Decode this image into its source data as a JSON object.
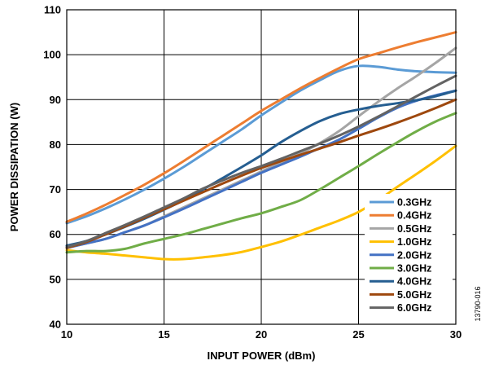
{
  "chart_data": {
    "type": "line",
    "title": "",
    "xlabel": "INPUT POWER (dBm)",
    "ylabel": "POWER DISSIPATION (W)",
    "xlim": [
      10,
      30
    ],
    "ylim": [
      40,
      110
    ],
    "xticks": [
      10,
      15,
      20,
      25,
      30
    ],
    "yticks": [
      40,
      50,
      60,
      70,
      80,
      90,
      100,
      110
    ],
    "grid": true,
    "legend": "bottom-right",
    "figure_id": "13790-016",
    "x": [
      10,
      11,
      12,
      13,
      14,
      15,
      16,
      17,
      18,
      19,
      20,
      21,
      22,
      23,
      24,
      25,
      26,
      27,
      28,
      29,
      30
    ],
    "series": [
      {
        "name": "0.3GHz",
        "color": "#5b9bd5",
        "values": [
          62.5,
          64,
          65.8,
          67.8,
          70,
          72.4,
          75,
          77.8,
          80.6,
          83.4,
          86.5,
          89.3,
          92,
          94.3,
          96.4,
          97.5,
          97.3,
          96.7,
          96.3,
          96.1,
          96
        ]
      },
      {
        "name": "0.4GHz",
        "color": "#ed7d31",
        "values": [
          62.8,
          64.6,
          66.6,
          68.8,
          71.1,
          73.6,
          76.3,
          79.1,
          81.9,
          84.7,
          87.5,
          90,
          92.5,
          94.8,
          97,
          99,
          100.3,
          101.6,
          102.8,
          103.9,
          105
        ]
      },
      {
        "name": "0.5GHz",
        "color": "#a5a5a5",
        "values": [
          57,
          58,
          59,
          60.5,
          62,
          64,
          66,
          68,
          70,
          72,
          74,
          76,
          78,
          80.3,
          83,
          86.3,
          89.5,
          92.5,
          95.3,
          98.3,
          101.5
        ]
      },
      {
        "name": "1.0GHz",
        "color": "#ffc000",
        "values": [
          56.5,
          56,
          55.7,
          55.3,
          54.9,
          54.5,
          54.5,
          54.9,
          55.4,
          56.1,
          57.2,
          58.4,
          59.9,
          61.5,
          63.1,
          65,
          67.6,
          70.6,
          73.5,
          76.5,
          79.7
        ]
      },
      {
        "name": "2.0GHz",
        "color": "#4472c4",
        "values": [
          57,
          58,
          59,
          60.5,
          62,
          63.8,
          65.7,
          67.7,
          69.7,
          71.7,
          73.7,
          75.5,
          77.3,
          79.2,
          81.1,
          83.5,
          86,
          88.2,
          89.8,
          91,
          92
        ]
      },
      {
        "name": "3.0GHz",
        "color": "#70ad47",
        "values": [
          56,
          56.3,
          56.3,
          56.8,
          58,
          59,
          60,
          61.2,
          62.4,
          63.6,
          64.7,
          66.1,
          67.6,
          70,
          72.6,
          75.2,
          77.9,
          80.5,
          83,
          85.2,
          87
        ]
      },
      {
        "name": "4.0GHz",
        "color": "#255e91",
        "values": [
          57.5,
          58.5,
          60,
          61.7,
          63.5,
          65.5,
          67.6,
          70,
          72.5,
          75,
          77.6,
          80.5,
          83,
          85.2,
          86.8,
          87.8,
          88.6,
          89.2,
          89.9,
          90.8,
          92
        ]
      },
      {
        "name": "5.0GHz",
        "color": "#9e480e",
        "values": [
          57,
          58.3,
          60,
          61.8,
          63.7,
          65.6,
          67.5,
          69.4,
          71.3,
          73.1,
          74.8,
          76.3,
          77.7,
          79.1,
          80.5,
          82,
          83.4,
          84.9,
          86.5,
          88.2,
          90
        ]
      },
      {
        "name": "6.0GHz",
        "color": "#636363",
        "values": [
          57.2,
          58.5,
          60.3,
          62.1,
          64,
          66,
          68,
          70.2,
          72,
          73.7,
          75.2,
          76.8,
          78.5,
          80.2,
          82,
          84,
          86.2,
          88.5,
          90.8,
          93.1,
          95.3
        ]
      }
    ]
  }
}
